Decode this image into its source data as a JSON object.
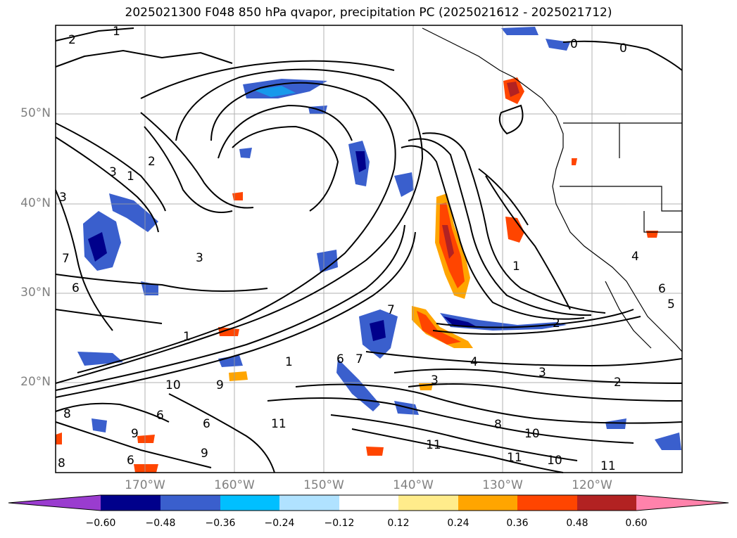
{
  "title": "2025021300 F048 850 hPa qvapor, precipitation PC (2025021612 - 2025021712)",
  "map": {
    "lat_labels": [
      "50°N",
      "40°N",
      "30°N",
      "20°N"
    ],
    "lon_labels": [
      "170°W",
      "160°W",
      "150°W",
      "140°W",
      "130°W",
      "120°W"
    ],
    "land_color": "#ffffff",
    "gridline_color": "#a0a0a0",
    "contour_color": "#000000",
    "contour_labels": [
      "1",
      "2",
      "0",
      "0",
      "2",
      "3",
      "1",
      "3",
      "7",
      "6",
      "1",
      "3",
      "10",
      "9",
      "6",
      "6",
      "9",
      "8",
      "6",
      "9",
      "8",
      "7",
      "6",
      "7",
      "1",
      "4",
      "3",
      "3",
      "2",
      "8",
      "11",
      "11",
      "11",
      "10",
      "10",
      "11",
      "1",
      "2",
      "4",
      "6",
      "5"
    ]
  },
  "colorbar": {
    "ticks": [
      "−0.60",
      "−0.48",
      "−0.36",
      "−0.24",
      "−0.12",
      "0.12",
      "0.24",
      "0.36",
      "0.48",
      "0.60"
    ],
    "colors": [
      "#9a3ccf",
      "#00008b",
      "#3a5fcd",
      "#00bfff",
      "#b0e2ff",
      "#ffffff",
      "#ffec8b",
      "#ffa500",
      "#ff4500",
      "#b22222",
      "#ff82ab"
    ]
  }
}
